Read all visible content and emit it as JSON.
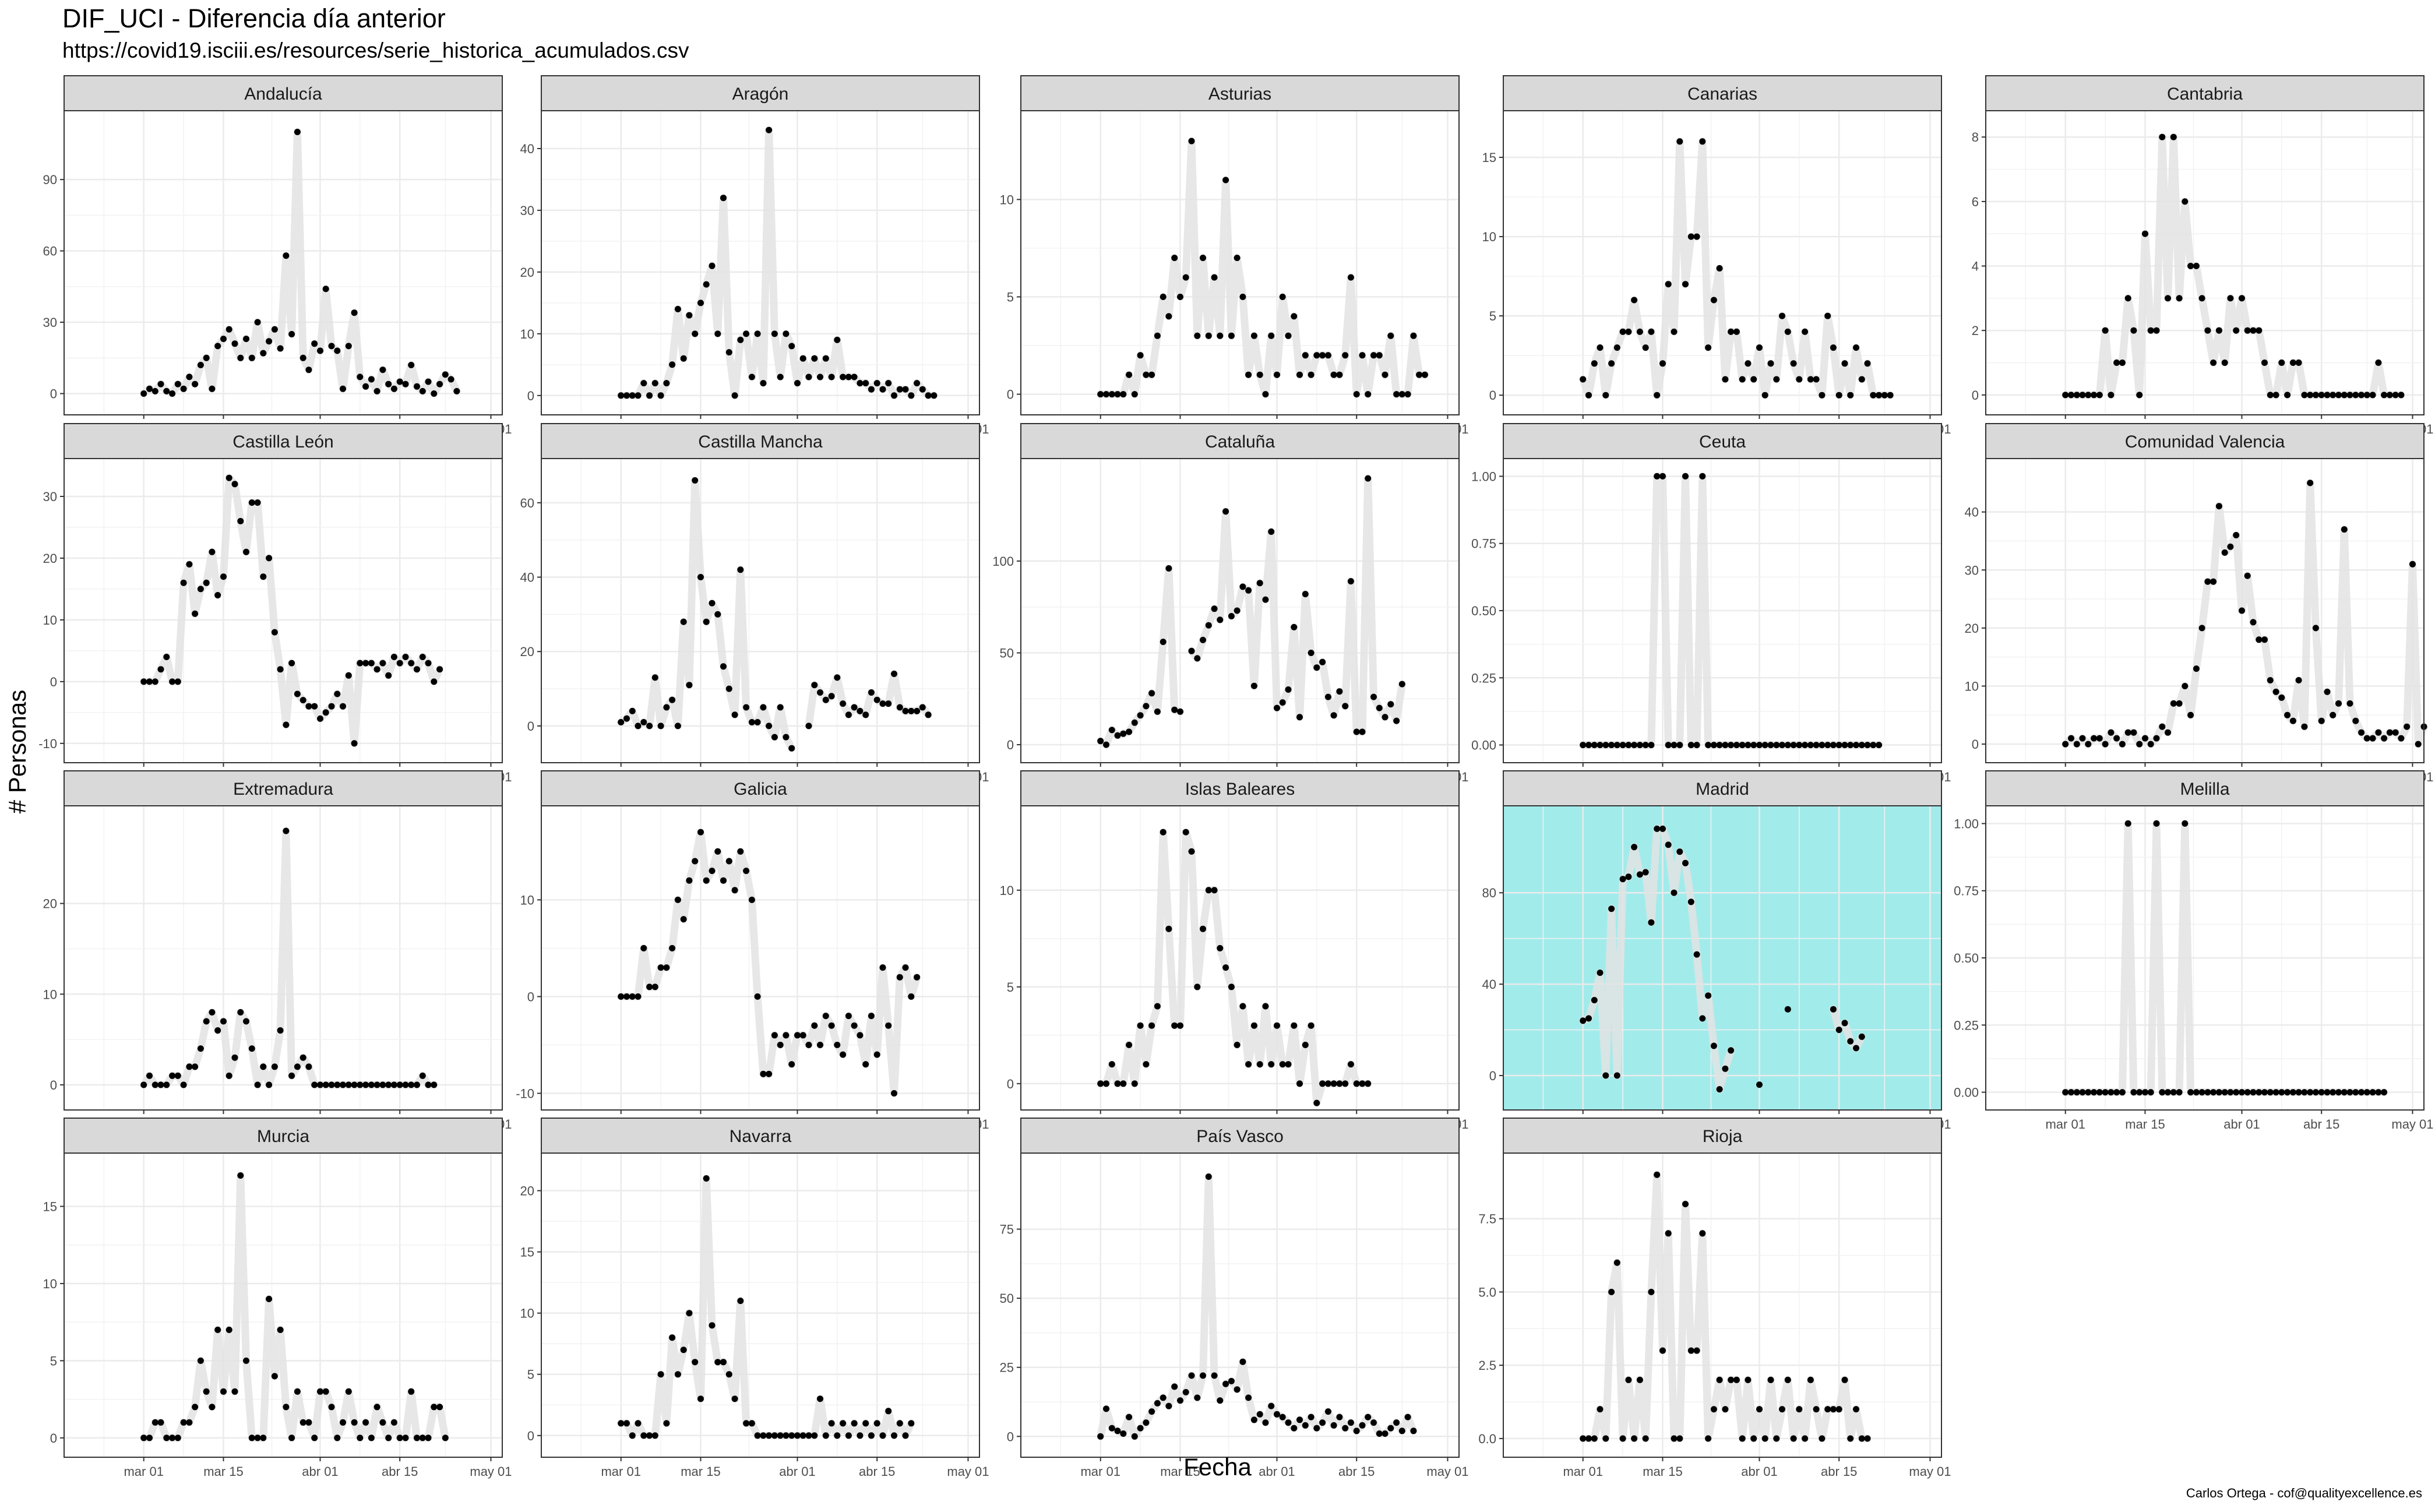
{
  "title": "DIF_UCI - Diferencia día anterior",
  "subtitle": "https://covid19.isciii.es/resources/serie_historica_acumulados.csv",
  "caption": "Carlos Ortega - cof@qualityexcellence.es",
  "colors": {
    "line": "#e3e3e3",
    "point": "#000000",
    "strip": "#d9d9d9",
    "highlight": "#a2ebeb",
    "panel_border": "#333333",
    "grid": "#ebebeb"
  },
  "chart_data": {
    "type": "line",
    "facet": "region",
    "xlabel": "Fecha",
    "ylabel": "# Personas",
    "x_ticks": [
      "mar 01",
      "mar 15",
      "abr 01",
      "abr 15",
      "may 01"
    ],
    "x_tick_days": [
      0,
      14,
      31,
      45,
      61
    ],
    "x_range_days": [
      -14,
      63
    ],
    "dates_start": "2020-03-09",
    "grid": true,
    "highlighted_panel": "Madrid",
    "panels": [
      {
        "region": "Andalucía",
        "y_ticks": [
          0,
          30,
          60,
          90
        ],
        "ylim": [
          -6,
          116
        ],
        "y": [
          0,
          2,
          1,
          4,
          1,
          0,
          4,
          2,
          7,
          4,
          12,
          15,
          2,
          20,
          23,
          27,
          21,
          15,
          23,
          15,
          30,
          17,
          22,
          27,
          19,
          58,
          25,
          110,
          15,
          10,
          21,
          18,
          44,
          20,
          18,
          2,
          20,
          34,
          7,
          3,
          6,
          1,
          10,
          4,
          2,
          5,
          4,
          12,
          3,
          1,
          5,
          0,
          4,
          8,
          6,
          1
        ]
      },
      {
        "region": "Aragón",
        "y_ticks": [
          0,
          10,
          20,
          30,
          40
        ],
        "ylim": [
          -2,
          45
        ],
        "y": [
          0,
          0,
          0,
          0,
          2,
          0,
          2,
          0,
          2,
          5,
          14,
          6,
          13,
          10,
          15,
          18,
          21,
          10,
          32,
          7,
          0,
          9,
          10,
          3,
          10,
          2,
          43,
          10,
          3,
          10,
          8,
          2,
          6,
          3,
          6,
          3,
          6,
          3,
          9,
          3,
          3,
          3,
          2,
          2,
          1,
          2,
          1,
          2,
          0,
          1,
          1,
          0,
          2,
          1,
          0,
          0
        ]
      },
      {
        "region": "Asturias",
        "y_ticks": [
          0,
          5,
          10
        ],
        "ylim": [
          -0.7,
          14.2
        ],
        "y": [
          0,
          0,
          0,
          0,
          0,
          1,
          0,
          2,
          1,
          1,
          3,
          5,
          4,
          7,
          5,
          6,
          13,
          3,
          7,
          3,
          6,
          3,
          11,
          3,
          7,
          5,
          1,
          3,
          1,
          0,
          3,
          1,
          5,
          3,
          4,
          1,
          2,
          1,
          2,
          2,
          2,
          1,
          1,
          2,
          6,
          0,
          2,
          0,
          2,
          2,
          1,
          3,
          0,
          0,
          0,
          3,
          1,
          1
        ]
      },
      {
        "region": "Canarias",
        "y_ticks": [
          0,
          5,
          10,
          15
        ],
        "ylim": [
          -0.8,
          17.5
        ],
        "y": [
          1,
          0,
          2,
          3,
          0,
          2,
          3,
          4,
          4,
          6,
          4,
          3,
          4,
          0,
          2,
          7,
          4,
          16,
          7,
          10,
          10,
          16,
          3,
          6,
          8,
          1,
          4,
          4,
          1,
          2,
          1,
          3,
          0,
          2,
          1,
          5,
          4,
          2,
          1,
          4,
          1,
          1,
          0,
          5,
          3,
          0,
          2,
          0,
          3,
          1,
          2,
          0,
          0,
          0,
          0
        ]
      },
      {
        "region": "Cantabria",
        "y_ticks": [
          0,
          2,
          4,
          6,
          8
        ],
        "ylim": [
          -0.4,
          8.6
        ],
        "y": [
          0,
          0,
          0,
          0,
          0,
          0,
          0,
          2,
          0,
          1,
          1,
          3,
          2,
          0,
          5,
          2,
          2,
          8,
          3,
          8,
          3,
          6,
          4,
          4,
          3,
          2,
          1,
          2,
          1,
          3,
          2,
          3,
          2,
          2,
          2,
          1,
          0,
          0,
          1,
          0,
          1,
          1,
          0,
          0,
          0,
          0,
          0,
          0,
          0,
          0,
          0,
          0,
          0,
          0,
          0,
          1,
          0,
          0,
          0,
          0
        ]
      },
      {
        "region": "Castilla León",
        "y_ticks": [
          -10,
          0,
          10,
          20,
          30
        ],
        "ylim": [
          -12,
          35
        ],
        "y": [
          0,
          0,
          0,
          2,
          4,
          0,
          0,
          16,
          19,
          11,
          15,
          16,
          21,
          14,
          17,
          33,
          32,
          26,
          21,
          29,
          29,
          17,
          20,
          8,
          2,
          -7,
          3,
          -2,
          -3,
          -4,
          -4,
          -6,
          -5,
          -4,
          -2,
          -4,
          1,
          -10,
          3,
          3,
          3,
          2,
          3,
          1,
          4,
          3,
          4,
          3,
          2,
          4,
          3,
          0,
          2
        ]
      },
      {
        "region": "Castilla Mancha",
        "y_ticks": [
          0,
          20,
          40,
          60
        ],
        "ylim": [
          -8,
          70
        ],
        "y": [
          1,
          2,
          4,
          0,
          1,
          0,
          13,
          0,
          5,
          7,
          0,
          28,
          11,
          66,
          40,
          28,
          33,
          30,
          16,
          10,
          3,
          42,
          5,
          1,
          1,
          5,
          0,
          -3,
          5,
          -3,
          -6,
          null,
          null,
          0,
          11,
          9,
          7,
          8,
          13,
          6,
          3,
          5,
          4,
          3,
          9,
          7,
          6,
          6,
          14,
          5,
          4,
          4,
          4,
          5,
          3
        ]
      },
      {
        "region": "Cataluña",
        "y_ticks": [
          0,
          50,
          100
        ],
        "ylim": [
          -6,
          152
        ],
        "y": [
          2,
          0,
          8,
          5,
          6,
          7,
          12,
          16,
          21,
          28,
          18,
          56,
          96,
          19,
          18,
          null,
          51,
          47,
          57,
          65,
          74,
          68,
          127,
          70,
          73,
          86,
          84,
          32,
          88,
          79,
          116,
          20,
          23,
          30,
          64,
          15,
          82,
          50,
          42,
          45,
          26,
          16,
          29,
          21,
          89,
          7,
          7,
          145,
          26,
          20,
          15,
          22,
          13,
          33
        ]
      },
      {
        "region": "Ceuta",
        "y_ticks": [
          0.0,
          0.25,
          0.5,
          0.75,
          1.0
        ],
        "y_tick_labels": [
          "0.00",
          "0.25",
          "0.50",
          "0.75",
          "1.00"
        ],
        "ylim": [
          -0.04,
          1.04
        ],
        "y": [
          0,
          0,
          0,
          0,
          0,
          0,
          0,
          0,
          0,
          0,
          0,
          0,
          0,
          1,
          1,
          0,
          0,
          0,
          1,
          0,
          0,
          1,
          0,
          0,
          0,
          0,
          0,
          0,
          0,
          0,
          0,
          0,
          0,
          0,
          0,
          0,
          0,
          0,
          0,
          0,
          0,
          0,
          0,
          0,
          0,
          0,
          0,
          0,
          0,
          0,
          0,
          0,
          0
        ]
      },
      {
        "region": "Comunidad Valencia",
        "y_ticks": [
          0,
          10,
          20,
          30,
          40
        ],
        "ylim": [
          -2,
          48
        ],
        "y": [
          0,
          1,
          0,
          1,
          0,
          1,
          1,
          0,
          2,
          1,
          0,
          2,
          2,
          0,
          1,
          0,
          1,
          3,
          2,
          7,
          7,
          10,
          5,
          13,
          20,
          28,
          28,
          41,
          33,
          34,
          36,
          23,
          29,
          21,
          18,
          18,
          11,
          9,
          8,
          5,
          4,
          11,
          3,
          45,
          20,
          4,
          9,
          5,
          7,
          37,
          7,
          4,
          2,
          1,
          1,
          2,
          1,
          2,
          2,
          1,
          3,
          31,
          0,
          3
        ]
      },
      {
        "region": "Extremadura",
        "y_ticks": [
          0,
          10,
          20
        ],
        "ylim": [
          -2,
          30
        ],
        "y": [
          0,
          1,
          0,
          0,
          0,
          1,
          1,
          0,
          2,
          2,
          4,
          7,
          8,
          6,
          7,
          1,
          3,
          8,
          7,
          4,
          0,
          2,
          0,
          2,
          6,
          28,
          1,
          2,
          3,
          2,
          0,
          0,
          0,
          0,
          0,
          0,
          0,
          0,
          0,
          0,
          0,
          0,
          0,
          0,
          0,
          0,
          0,
          0,
          0,
          1,
          0,
          0
        ]
      },
      {
        "region": "Galicia",
        "y_ticks": [
          -10,
          0,
          10
        ],
        "ylim": [
          -11,
          19
        ],
        "y": [
          0,
          0,
          0,
          0,
          5,
          1,
          1,
          3,
          3,
          5,
          10,
          8,
          12,
          14,
          17,
          12,
          13,
          15,
          12,
          14,
          11,
          15,
          13,
          10,
          0,
          -8,
          -8,
          -4,
          -5,
          -4,
          -7,
          -4,
          -4,
          -5,
          -3,
          -5,
          -2,
          -3,
          -5,
          -6,
          -2,
          -3,
          -4,
          -7,
          -2,
          -6,
          3,
          -3,
          -10,
          2,
          3,
          0,
          2
        ]
      },
      {
        "region": "Islas Baleares",
        "y_ticks": [
          0,
          5,
          10
        ],
        "ylim": [
          -1,
          14
        ],
        "y": [
          0,
          0,
          1,
          0,
          0,
          2,
          0,
          3,
          1,
          3,
          4,
          13,
          8,
          3,
          3,
          13,
          12,
          5,
          8,
          10,
          10,
          7,
          6,
          5,
          2,
          4,
          1,
          3,
          1,
          4,
          1,
          3,
          1,
          1,
          3,
          0,
          2,
          3,
          -1,
          0,
          0,
          0,
          0,
          0,
          1,
          0,
          0,
          0
        ]
      },
      {
        "region": "Madrid",
        "y_ticks": [
          0,
          40,
          80
        ],
        "ylim": [
          -12,
          115
        ],
        "y": [
          24,
          25,
          33,
          45,
          0,
          73,
          0,
          86,
          87,
          100,
          88,
          89,
          67,
          108,
          108,
          101,
          80,
          98,
          93,
          76,
          53,
          25,
          35,
          13,
          -6,
          3,
          11,
          null,
          null,
          null,
          null,
          -4,
          null,
          null,
          null,
          null,
          29,
          null,
          null,
          null,
          null,
          null,
          null,
          null,
          29,
          20,
          23,
          15,
          12,
          17
        ]
      },
      {
        "region": "Melilla",
        "y_ticks": [
          0.0,
          0.25,
          0.5,
          0.75,
          1.0
        ],
        "y_tick_labels": [
          "0.00",
          "0.25",
          "0.50",
          "0.75",
          "1.00"
        ],
        "ylim": [
          -0.04,
          1.04
        ],
        "y": [
          0,
          0,
          0,
          0,
          0,
          0,
          0,
          0,
          0,
          0,
          0,
          1,
          0,
          0,
          0,
          0,
          1,
          0,
          0,
          0,
          0,
          1,
          0,
          0,
          0,
          0,
          0,
          0,
          0,
          0,
          0,
          0,
          0,
          0,
          0,
          0,
          0,
          0,
          0,
          0,
          0,
          0,
          0,
          0,
          0,
          0,
          0,
          0,
          0,
          0,
          0,
          0,
          0,
          0,
          0,
          0,
          0
        ]
      },
      {
        "region": "Murcia",
        "y_ticks": [
          0,
          5,
          10,
          15
        ],
        "ylim": [
          -0.8,
          18
        ],
        "y": [
          0,
          0,
          1,
          1,
          0,
          0,
          0,
          1,
          1,
          2,
          5,
          3,
          2,
          7,
          3,
          7,
          3,
          17,
          5,
          0,
          0,
          0,
          9,
          4,
          7,
          2,
          0,
          3,
          1,
          1,
          0,
          3,
          3,
          2,
          0,
          1,
          3,
          1,
          0,
          1,
          0,
          2,
          1,
          0,
          1,
          0,
          0,
          3,
          0,
          0,
          0,
          2,
          2,
          0
        ]
      },
      {
        "region": "Navarra",
        "y_ticks": [
          0,
          5,
          10,
          15,
          20
        ],
        "ylim": [
          -1.2,
          22.5
        ],
        "y": [
          1,
          1,
          0,
          1,
          0,
          0,
          0,
          5,
          1,
          8,
          5,
          7,
          10,
          6,
          3,
          21,
          9,
          6,
          6,
          5,
          3,
          11,
          1,
          1,
          0,
          0,
          0,
          0,
          0,
          0,
          0,
          0,
          0,
          0,
          0,
          3,
          0,
          1,
          0,
          1,
          0,
          1,
          0,
          1,
          0,
          1,
          0,
          2,
          0,
          1,
          0,
          1
        ]
      },
      {
        "region": "País Vasco",
        "y_ticks": [
          0,
          25,
          50,
          75
        ],
        "ylim": [
          -5,
          100
        ],
        "y": [
          0,
          10,
          3,
          2,
          1,
          7,
          0,
          3,
          5,
          9,
          12,
          14,
          11,
          18,
          13,
          16,
          22,
          14,
          22,
          94,
          22,
          13,
          19,
          20,
          17,
          27,
          14,
          6,
          8,
          5,
          11,
          8,
          7,
          5,
          3,
          6,
          4,
          7,
          3,
          5,
          9,
          4,
          7,
          3,
          5,
          2,
          4,
          7,
          5,
          1,
          1,
          3,
          5,
          2,
          7,
          2
        ]
      },
      {
        "region": "Rioja",
        "y_ticks": [
          0,
          2.5,
          5,
          7.5
        ],
        "y_tick_labels": [
          "0.0",
          "2.5",
          "5.0",
          "7.5"
        ],
        "ylim": [
          -0.4,
          9.5
        ],
        "y": [
          0,
          0,
          0,
          1,
          0,
          5,
          6,
          0,
          2,
          0,
          2,
          0,
          5,
          9,
          3,
          7,
          0,
          0,
          8,
          3,
          3,
          7,
          0,
          1,
          2,
          1,
          2,
          2,
          0,
          2,
          0,
          1,
          0,
          2,
          0,
          1,
          2,
          0,
          1,
          0,
          2,
          1,
          0,
          1,
          1,
          1,
          2,
          0,
          1,
          0,
          0
        ]
      }
    ]
  }
}
